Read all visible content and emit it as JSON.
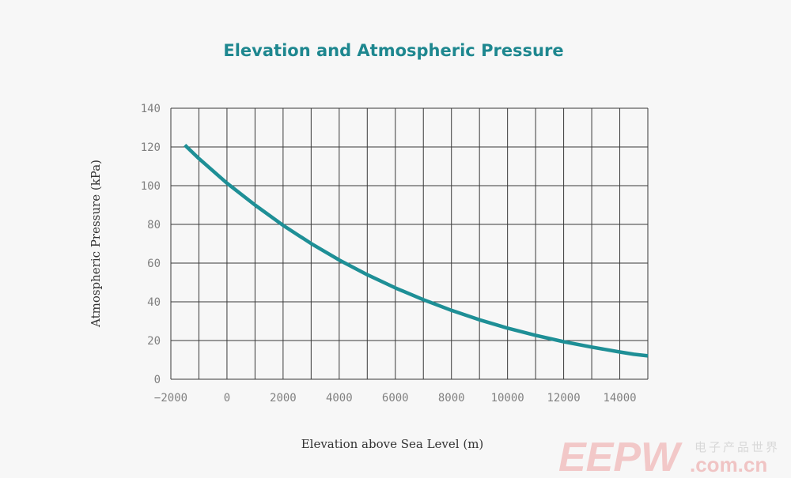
{
  "chart_data": {
    "type": "line",
    "title": "Elevation and Atmospheric Pressure",
    "xlabel": "Elevation above Sea Level (m)",
    "ylabel": "Atmospheric Pressure (kPa)",
    "xlim": [
      -2000,
      15000
    ],
    "ylim": [
      0,
      140
    ],
    "xticks": [
      -2000,
      0,
      2000,
      4000,
      6000,
      8000,
      10000,
      12000,
      14000
    ],
    "xtick_labels": [
      "−2000",
      "0",
      "2000",
      "4000",
      "6000",
      "8000",
      "10000",
      "12000",
      "14000"
    ],
    "yticks": [
      0,
      20,
      40,
      60,
      80,
      100,
      120,
      140
    ],
    "ytick_labels": [
      "0",
      "20",
      "40",
      "60",
      "80",
      "100",
      "120",
      "140"
    ],
    "grid": true,
    "x_grid_step": 1000,
    "series": [
      {
        "name": "Atmospheric Pressure",
        "color": "#1e8f96",
        "x": [
          -1500,
          -1000,
          0,
          1000,
          2000,
          3000,
          4000,
          5000,
          6000,
          7000,
          8000,
          9000,
          10000,
          11000,
          12000,
          13000,
          14000,
          14500,
          15000
        ],
        "y": [
          121,
          114,
          101.3,
          90,
          79.5,
          70.1,
          61.6,
          54,
          47.2,
          41.1,
          35.6,
          30.7,
          26.4,
          22.7,
          19.4,
          16.6,
          14.1,
          12.9,
          12.1
        ]
      }
    ]
  },
  "watermark": {
    "main": "EEPW",
    "cn": "电子产品世界",
    "url": ".com.cn"
  }
}
